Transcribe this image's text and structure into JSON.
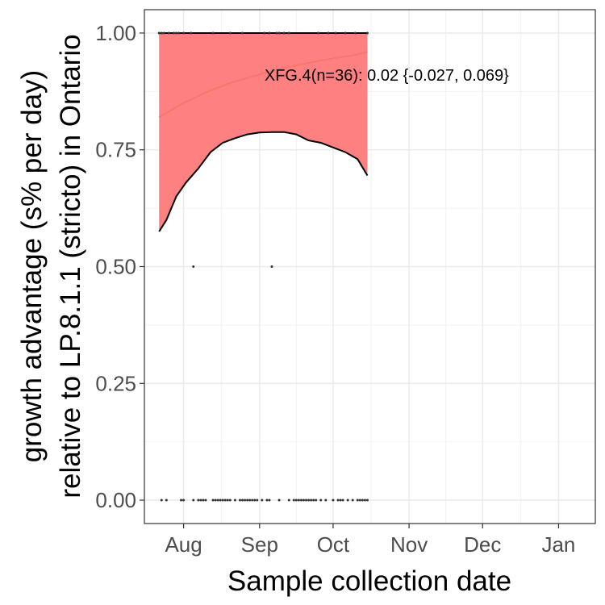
{
  "chart_data": {
    "type": "scatter",
    "xlabel": "Sample collection date",
    "ylabel_line1": "growth advantage (s% per day)",
    "ylabel_line2": "relative to LP.8.1.1 (stricto) in Ontario",
    "x_tick_labels": [
      "Aug",
      "Sep",
      "Oct",
      "Nov",
      "Dec",
      "Jan"
    ],
    "x_tick_dates": [
      "2025-08-01",
      "2025-09-01",
      "2025-10-01",
      "2025-11-01",
      "2025-12-01",
      "2026-01-01"
    ],
    "xlim": [
      "2025-07-16",
      "2026-01-16"
    ],
    "y_tick_labels": [
      "0.00",
      "0.25",
      "0.50",
      "0.75",
      "1.00"
    ],
    "y_ticks": [
      0,
      0.25,
      0.5,
      0.75,
      1.0
    ],
    "ylim": [
      -0.05,
      1.05
    ],
    "grid": true,
    "annotation": {
      "text": "XFG.4(n=36): 0.02 {-0.027, 0.069}",
      "x": "2025-09-03",
      "y": 0.91
    },
    "series": [
      {
        "name": "fitted proportion",
        "color": "#F8766D",
        "points": [
          [
            "2025-07-22",
            0.82
          ],
          [
            "2025-08-01",
            0.85
          ],
          [
            "2025-08-11",
            0.875
          ],
          [
            "2025-08-21",
            0.895
          ],
          [
            "2025-08-31",
            0.91
          ],
          [
            "2025-09-10",
            0.925
          ],
          [
            "2025-09-20",
            0.935
          ],
          [
            "2025-09-30",
            0.945
          ],
          [
            "2025-10-10",
            0.953
          ],
          [
            "2025-10-15",
            0.96
          ]
        ]
      },
      {
        "name": "confidence interval lower bound",
        "color": "#000000",
        "points": [
          [
            "2025-07-22",
            0.575
          ],
          [
            "2025-07-25",
            0.6
          ],
          [
            "2025-07-29",
            0.65
          ],
          [
            "2025-08-02",
            0.68
          ],
          [
            "2025-08-07",
            0.71
          ],
          [
            "2025-08-12",
            0.745
          ],
          [
            "2025-08-17",
            0.765
          ],
          [
            "2025-08-22",
            0.775
          ],
          [
            "2025-08-27",
            0.783
          ],
          [
            "2025-09-01",
            0.787
          ],
          [
            "2025-09-06",
            0.788
          ],
          [
            "2025-09-11",
            0.788
          ],
          [
            "2025-09-16",
            0.783
          ],
          [
            "2025-09-21",
            0.77
          ],
          [
            "2025-09-26",
            0.765
          ],
          [
            "2025-10-01",
            0.755
          ],
          [
            "2025-10-06",
            0.745
          ],
          [
            "2025-10-11",
            0.73
          ],
          [
            "2025-10-15",
            0.695
          ]
        ]
      },
      {
        "name": "confidence interval upper bound",
        "color": "#000000",
        "points": [
          [
            "2025-07-22",
            1.0
          ],
          [
            "2025-10-15",
            1.0
          ]
        ]
      }
    ],
    "ribbon_color": "#FF8080",
    "observations": {
      "color": "#333333",
      "points": [
        [
          "2025-07-22",
          1
        ],
        [
          "2025-07-23",
          1
        ],
        [
          "2025-07-24",
          1
        ],
        [
          "2025-07-26",
          1
        ],
        [
          "2025-07-28",
          1
        ],
        [
          "2025-07-29",
          1
        ],
        [
          "2025-07-30",
          1
        ],
        [
          "2025-08-01",
          1
        ],
        [
          "2025-08-04",
          1
        ],
        [
          "2025-08-13",
          1
        ],
        [
          "2025-08-20",
          1
        ],
        [
          "2025-08-25",
          1
        ],
        [
          "2025-09-03",
          1
        ],
        [
          "2025-09-05",
          1
        ],
        [
          "2025-09-08",
          1
        ],
        [
          "2025-09-09",
          1
        ],
        [
          "2025-09-11",
          1
        ],
        [
          "2025-09-13",
          1
        ],
        [
          "2025-09-25",
          1
        ],
        [
          "2025-09-29",
          1
        ],
        [
          "2025-10-02",
          1
        ],
        [
          "2025-10-06",
          1
        ],
        [
          "2025-10-10",
          1
        ],
        [
          "2025-10-15",
          1
        ],
        [
          "2025-08-05",
          0.5
        ],
        [
          "2025-09-06",
          0.5
        ],
        [
          "2025-07-23",
          0
        ],
        [
          "2025-07-25",
          0
        ],
        [
          "2025-07-31",
          0
        ],
        [
          "2025-08-01",
          0
        ],
        [
          "2025-08-05",
          0
        ],
        [
          "2025-08-07",
          0
        ],
        [
          "2025-08-08",
          0
        ],
        [
          "2025-08-09",
          0
        ],
        [
          "2025-08-10",
          0
        ],
        [
          "2025-08-13",
          0
        ],
        [
          "2025-08-14",
          0
        ],
        [
          "2025-08-15",
          0
        ],
        [
          "2025-08-16",
          0
        ],
        [
          "2025-08-17",
          0
        ],
        [
          "2025-08-18",
          0
        ],
        [
          "2025-08-19",
          0
        ],
        [
          "2025-08-20",
          0
        ],
        [
          "2025-08-22",
          0
        ],
        [
          "2025-08-24",
          0
        ],
        [
          "2025-08-25",
          0
        ],
        [
          "2025-08-26",
          0
        ],
        [
          "2025-08-27",
          0
        ],
        [
          "2025-08-28",
          0
        ],
        [
          "2025-08-29",
          0
        ],
        [
          "2025-08-30",
          0
        ],
        [
          "2025-08-31",
          0
        ],
        [
          "2025-09-02",
          0
        ],
        [
          "2025-09-04",
          0
        ],
        [
          "2025-09-05",
          0
        ],
        [
          "2025-09-09",
          0
        ],
        [
          "2025-09-13",
          0
        ],
        [
          "2025-09-15",
          0
        ],
        [
          "2025-09-16",
          0
        ],
        [
          "2025-09-17",
          0
        ],
        [
          "2025-09-18",
          0
        ],
        [
          "2025-09-19",
          0
        ],
        [
          "2025-09-20",
          0
        ],
        [
          "2025-09-21",
          0
        ],
        [
          "2025-09-22",
          0
        ],
        [
          "2025-09-23",
          0
        ],
        [
          "2025-09-24",
          0
        ],
        [
          "2025-09-26",
          0
        ],
        [
          "2025-09-28",
          0
        ],
        [
          "2025-10-01",
          0
        ],
        [
          "2025-10-03",
          0
        ],
        [
          "2025-10-04",
          0
        ],
        [
          "2025-10-05",
          0
        ],
        [
          "2025-10-07",
          0
        ],
        [
          "2025-10-09",
          0
        ],
        [
          "2025-10-11",
          0
        ],
        [
          "2025-10-12",
          0
        ],
        [
          "2025-10-13",
          0
        ],
        [
          "2025-10-14",
          0
        ],
        [
          "2025-10-15",
          0
        ]
      ]
    }
  }
}
